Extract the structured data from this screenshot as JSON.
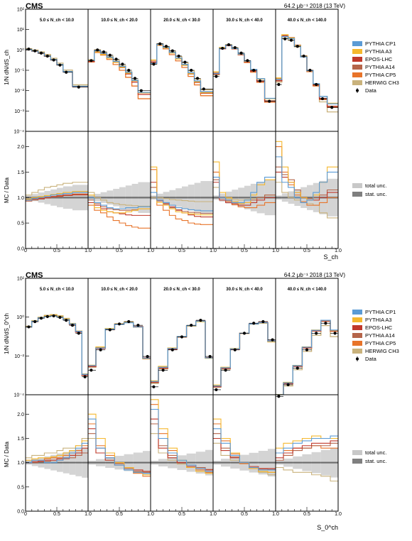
{
  "figure": {
    "experiment": "CMS",
    "luminosity_label": "64.2 μb⁻¹ 2018 (13 TeV)"
  },
  "legend": {
    "models": [
      {
        "name": "PYTHIA CP1",
        "color": "#5b9bd5"
      },
      {
        "name": "PYTHIA A3",
        "color": "#f5b82e"
      },
      {
        "name": "EPOS-LHC",
        "color": "#c0392b"
      },
      {
        "name": "PYTHIA A14",
        "color": "#b5654a"
      },
      {
        "name": "PYTHIA CP5",
        "color": "#e8742a"
      },
      {
        "name": "HERWIG CH3",
        "color": "#c9b27c"
      }
    ],
    "data_label": "Data",
    "uncertainties": [
      {
        "name": "total unc.",
        "color": "#c8c8c8"
      },
      {
        "name": "stat. unc.",
        "color": "#7f7f7f"
      }
    ]
  },
  "chart_data": [
    {
      "type": "line",
      "title": "",
      "ylabel_main": "1/N dN/dS_ch",
      "ylabel_ratio": "MC / Data",
      "xlabel": "S_ch",
      "log_y_main": true,
      "ylim_main": [
        0.0001,
        100
      ],
      "ylim_ratio": [
        0.0,
        2.3
      ],
      "main_yticks": [
        "10⁻⁴",
        "10⁻³",
        "10⁻²",
        "10⁻¹",
        "10⁰",
        "10¹",
        "10²"
      ],
      "ratio_yticks": [
        "0.0",
        "0.5",
        "1.0",
        "1.5",
        "2.0"
      ],
      "xticks": [
        "0",
        "0.5",
        "1.0",
        "0.5",
        "1.0",
        "0.5",
        "1.0",
        "0.5",
        "1.0",
        "0.5",
        "1.0"
      ],
      "multiplicity_bins": [
        "5.0 ≤ N_ch < 10.0",
        "10.0 ≤ N_ch < 20.0",
        "20.0 ≤ N_ch < 30.0",
        "30.0 ≤ N_ch < 40.0",
        "40.0 ≤ N_ch < 140.0"
      ],
      "x": [
        [
          0.05,
          0.15,
          0.25,
          0.35,
          0.45,
          0.55,
          0.65,
          0.85
        ],
        [
          0.05,
          0.15,
          0.25,
          0.35,
          0.45,
          0.55,
          0.65,
          0.75,
          0.85
        ],
        [
          0.05,
          0.15,
          0.25,
          0.35,
          0.45,
          0.55,
          0.65,
          0.75,
          0.85
        ],
        [
          0.05,
          0.15,
          0.25,
          0.35,
          0.45,
          0.55,
          0.65,
          0.75,
          0.9
        ],
        [
          0.05,
          0.15,
          0.25,
          0.35,
          0.45,
          0.55,
          0.65,
          0.75,
          0.9
        ]
      ],
      "data": [
        [
          1.1,
          0.9,
          0.7,
          0.5,
          0.32,
          0.18,
          0.08,
          0.015
        ],
        [
          0.3,
          1.0,
          0.8,
          0.55,
          0.35,
          0.2,
          0.1,
          0.04,
          0.01
        ],
        [
          0.2,
          2.0,
          1.5,
          0.9,
          0.5,
          0.25,
          0.1,
          0.04,
          0.012
        ],
        [
          0.05,
          1.2,
          1.8,
          1.3,
          0.7,
          0.3,
          0.1,
          0.03,
          0.003
        ],
        [
          0.02,
          3.5,
          3.0,
          1.5,
          0.5,
          0.1,
          0.02,
          0.004,
          0.0015
        ]
      ],
      "ratio": [
        {
          "PYTHIA CP1": [
            0.95,
            0.98,
            1.0,
            1.02,
            1.05,
            1.06,
            1.08,
            1.1
          ],
          "PYTHIA A3": [
            0.97,
            1.0,
            1.02,
            1.04,
            1.06,
            1.08,
            1.1,
            1.12
          ],
          "EPOS-LHC": [
            0.96,
            0.97,
            0.98,
            1.0,
            1.02,
            1.03,
            1.05,
            1.06
          ],
          "PYTHIA A14": [
            0.93,
            0.95,
            0.97,
            0.99,
            1.01,
            1.02,
            1.04,
            1.05
          ],
          "PYTHIA CP5": [
            0.95,
            0.97,
            0.99,
            1.0,
            1.02,
            1.04,
            1.05,
            1.07
          ],
          "HERWIG CH3": [
            1.05,
            1.1,
            1.15,
            1.2,
            1.22,
            1.25,
            1.28,
            1.3
          ]
        },
        {
          "PYTHIA CP1": [
            1.0,
            0.9,
            0.85,
            0.8,
            0.78,
            0.78,
            0.8,
            0.8,
            0.82
          ],
          "PYTHIA A3": [
            1.05,
            0.8,
            0.75,
            0.72,
            0.7,
            0.7,
            0.72,
            0.75,
            0.78
          ],
          "EPOS-LHC": [
            0.9,
            0.85,
            0.78,
            0.72,
            0.7,
            0.68,
            0.66,
            0.65,
            0.65
          ],
          "PYTHIA A14": [
            0.95,
            0.88,
            0.82,
            0.78,
            0.76,
            0.75,
            0.75,
            0.76,
            0.78
          ],
          "PYTHIA CP5": [
            0.85,
            0.75,
            0.7,
            0.62,
            0.55,
            0.5,
            0.45,
            0.42,
            0.4
          ],
          "HERWIG CH3": [
            1.1,
            1.0,
            0.95,
            0.9,
            0.88,
            0.86,
            0.85,
            0.84,
            0.83
          ]
        },
        {
          "PYTHIA CP1": [
            1.1,
            0.95,
            0.9,
            0.85,
            0.8,
            0.78,
            0.76,
            0.75,
            0.74
          ],
          "PYTHIA A3": [
            1.6,
            0.9,
            0.85,
            0.78,
            0.72,
            0.7,
            0.68,
            0.67,
            0.66
          ],
          "EPOS-LHC": [
            1.3,
            0.95,
            0.88,
            0.82,
            0.75,
            0.7,
            0.66,
            0.63,
            0.62
          ],
          "PYTHIA A14": [
            1.2,
            0.93,
            0.87,
            0.8,
            0.76,
            0.73,
            0.71,
            0.7,
            0.69
          ],
          "PYTHIA CP5": [
            1.55,
            0.85,
            0.75,
            0.65,
            0.58,
            0.55,
            0.5,
            0.48,
            0.47
          ],
          "HERWIG CH3": [
            1.0,
            1.0,
            0.98,
            0.96,
            0.95,
            0.94,
            0.93,
            0.92,
            0.92
          ]
        },
        {
          "PYTHIA CP1": [
            1.4,
            1.0,
            0.95,
            0.9,
            0.9,
            0.95,
            1.1,
            1.3,
            1.4
          ],
          "PYTHIA A3": [
            1.7,
            1.1,
            1.0,
            0.92,
            0.88,
            0.9,
            1.05,
            1.25,
            1.35
          ],
          "EPOS-LHC": [
            1.3,
            0.95,
            0.9,
            0.88,
            0.85,
            0.85,
            0.9,
            0.95,
            1.0
          ],
          "PYTHIA A14": [
            1.35,
            1.0,
            0.95,
            0.9,
            0.88,
            0.9,
            0.95,
            1.0,
            1.05
          ],
          "PYTHIA CP5": [
            1.5,
            1.0,
            0.93,
            0.86,
            0.82,
            0.8,
            0.8,
            0.85,
            0.9
          ],
          "HERWIG CH3": [
            1.2,
            1.0,
            0.98,
            0.96,
            0.95,
            0.96,
            0.98,
            1.0,
            1.05
          ]
        },
        {
          "PYTHIA CP1": [
            1.8,
            1.3,
            1.2,
            1.0,
            0.9,
            0.95,
            1.1,
            1.3,
            1.5
          ],
          "PYTHIA A3": [
            2.1,
            1.6,
            1.3,
            1.1,
            1.0,
            0.95,
            1.05,
            1.3,
            1.6
          ],
          "EPOS-LHC": [
            1.5,
            1.4,
            1.3,
            1.1,
            1.0,
            0.95,
            0.95,
            1.0,
            1.1
          ],
          "PYTHIA A14": [
            1.6,
            1.45,
            1.35,
            1.15,
            1.0,
            0.98,
            1.0,
            1.05,
            1.15
          ],
          "PYTHIA CP5": [
            2.0,
            1.5,
            1.25,
            1.05,
            0.92,
            0.85,
            0.85,
            0.9,
            1.0
          ],
          "HERWIG CH3": [
            1.3,
            1.1,
            1.0,
            0.95,
            0.9,
            0.88,
            0.85,
            0.7,
            0.6
          ]
        }
      ]
    },
    {
      "type": "line",
      "title": "",
      "ylabel_main": "1/N dN/dS_0^ch",
      "ylabel_ratio": "MC / Data",
      "xlabel": "S_0^ch",
      "log_y_main": true,
      "ylim_main": [
        0.0001,
        1000
      ],
      "ylim_ratio": [
        0.0,
        2.4
      ],
      "main_yticks": [
        "10⁻⁴",
        "10⁻²",
        "10⁰",
        "10²"
      ],
      "ratio_yticks": [
        "0.0",
        "0.5",
        "1.0",
        "1.5",
        "2.0"
      ],
      "xticks": [
        "0",
        "0.5",
        "1.0",
        "0.5",
        "1.0",
        "0.5",
        "1.0",
        "0.5",
        "1.0",
        "0.5",
        "1.0"
      ],
      "multiplicity_bins": [
        "5.0 ≤ N_ch < 10.0",
        "10.0 ≤ N_ch < 20.0",
        "20.0 ≤ N_ch < 30.0",
        "30.0 ≤ N_ch < 40.0",
        "40.0 ≤ N_ch < 140.0"
      ],
      "x": [
        [
          0.05,
          0.15,
          0.25,
          0.35,
          0.45,
          0.55,
          0.65,
          0.75,
          0.85,
          0.95
        ],
        [
          0.05,
          0.2,
          0.35,
          0.5,
          0.65,
          0.8,
          0.95
        ],
        [
          0.05,
          0.2,
          0.35,
          0.5,
          0.65,
          0.8,
          0.95
        ],
        [
          0.05,
          0.2,
          0.35,
          0.5,
          0.65,
          0.8,
          0.95
        ],
        [
          0.05,
          0.2,
          0.35,
          0.5,
          0.65,
          0.8,
          0.95
        ]
      ],
      "data": [
        [
          1.2,
          2.5,
          4.0,
          5.0,
          5.5,
          4.5,
          3.0,
          1.5,
          0.5,
          0.0012
        ],
        [
          0.003,
          0.05,
          0.8,
          1.8,
          2.5,
          1.5,
          0.02
        ],
        [
          0.0003,
          0.003,
          0.05,
          0.3,
          1.5,
          3.0,
          0.02
        ],
        [
          0.0002,
          0.003,
          0.05,
          0.5,
          2.0,
          2.5,
          0.2
        ],
        [
          8e-05,
          0.0004,
          0.004,
          0.05,
          0.5,
          2.0,
          0.5
        ]
      ],
      "ratio": [
        {
          "PYTHIA CP1": [
            1.0,
            1.05,
            1.05,
            1.0,
            1.0,
            1.05,
            1.1,
            1.2,
            1.3,
            1.4
          ],
          "PYTHIA A3": [
            1.05,
            1.08,
            1.1,
            1.1,
            1.12,
            1.15,
            1.2,
            1.25,
            1.35,
            1.45
          ],
          "EPOS-LHC": [
            1.0,
            1.02,
            1.03,
            1.05,
            1.05,
            1.08,
            1.1,
            1.15,
            1.2,
            1.3
          ],
          "PYTHIA A14": [
            1.0,
            1.0,
            1.02,
            1.03,
            1.05,
            1.05,
            1.08,
            1.1,
            1.15,
            1.2
          ],
          "PYTHIA CP5": [
            1.05,
            1.05,
            1.05,
            1.08,
            1.1,
            1.1,
            1.15,
            1.2,
            1.25,
            1.35
          ],
          "HERWIG CH3": [
            1.1,
            1.15,
            1.15,
            1.2,
            1.2,
            1.25,
            1.3,
            1.3,
            1.35,
            1.5
          ]
        },
        {
          "PYTHIA CP1": [
            1.9,
            1.3,
            1.1,
            0.95,
            0.85,
            0.8,
            0.78
          ],
          "PYTHIA A3": [
            2.0,
            1.5,
            1.2,
            1.0,
            0.9,
            0.8,
            0.75
          ],
          "EPOS-LHC": [
            1.7,
            1.2,
            1.05,
            0.95,
            0.9,
            0.85,
            0.82
          ],
          "PYTHIA A14": [
            1.6,
            1.3,
            1.1,
            0.98,
            0.88,
            0.82,
            0.8
          ],
          "PYTHIA CP5": [
            1.8,
            1.35,
            1.15,
            1.0,
            0.88,
            0.78,
            0.72
          ],
          "HERWIG CH3": [
            1.5,
            1.2,
            1.05,
            0.95,
            0.9,
            0.85,
            0.82
          ]
        },
        {
          "PYTHIA CP1": [
            2.1,
            1.5,
            1.2,
            1.05,
            0.95,
            0.88,
            0.82
          ],
          "PYTHIA A3": [
            2.3,
            1.7,
            1.3,
            1.05,
            0.9,
            0.82,
            0.78
          ],
          "EPOS-LHC": [
            1.9,
            1.3,
            1.1,
            1.0,
            0.92,
            0.88,
            0.85
          ],
          "PYTHIA A14": [
            1.8,
            1.35,
            1.15,
            1.0,
            0.95,
            0.9,
            0.86
          ],
          "PYTHIA CP5": [
            2.2,
            1.6,
            1.25,
            1.0,
            0.9,
            0.85,
            0.8
          ],
          "HERWIG CH3": [
            1.6,
            1.2,
            1.05,
            0.97,
            0.92,
            0.88,
            0.85
          ]
        },
        {
          "PYTHIA CP1": [
            1.7,
            1.4,
            1.15,
            1.0,
            0.9,
            0.85,
            0.85
          ],
          "PYTHIA A3": [
            1.9,
            1.5,
            1.2,
            1.0,
            0.88,
            0.82,
            0.8
          ],
          "EPOS-LHC": [
            1.5,
            1.25,
            1.1,
            1.0,
            0.92,
            0.88,
            0.88
          ],
          "PYTHIA A14": [
            1.6,
            1.3,
            1.12,
            1.0,
            0.9,
            0.87,
            0.86
          ],
          "PYTHIA CP5": [
            1.8,
            1.45,
            1.18,
            0.98,
            0.88,
            0.82,
            0.8
          ],
          "HERWIG CH3": [
            1.4,
            1.15,
            1.05,
            0.98,
            0.9,
            0.8,
            0.75
          ]
        },
        {
          "PYTHIA CP1": [
            1.2,
            1.3,
            1.4,
            1.45,
            1.5,
            1.5,
            1.55
          ],
          "PYTHIA A3": [
            1.3,
            1.4,
            1.45,
            1.5,
            1.55,
            1.5,
            1.5
          ],
          "EPOS-LHC": [
            1.1,
            1.2,
            1.3,
            1.35,
            1.4,
            1.4,
            1.45
          ],
          "PYTHIA A14": [
            1.05,
            1.15,
            1.25,
            1.3,
            1.35,
            1.35,
            1.4
          ],
          "PYTHIA CP5": [
            1.2,
            1.25,
            1.3,
            1.3,
            1.35,
            1.3,
            1.3
          ],
          "HERWIG CH3": [
            0.9,
            0.85,
            0.8,
            0.8,
            0.75,
            0.72,
            0.62
          ]
        }
      ]
    }
  ]
}
